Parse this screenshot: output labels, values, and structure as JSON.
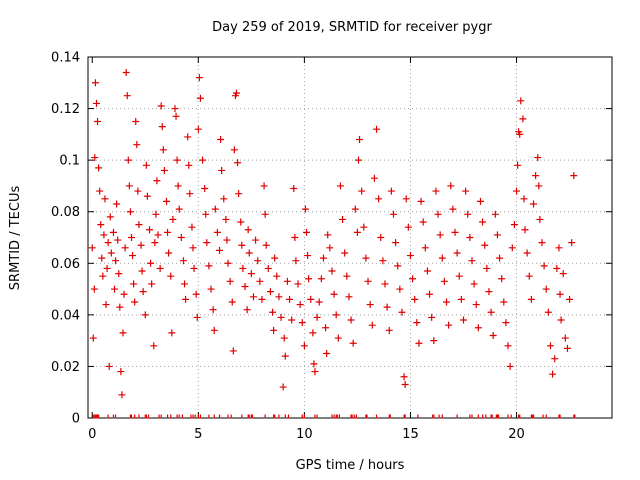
{
  "chart_data": {
    "type": "scatter",
    "title": "Day 259 of 2019, SRMTID for receiver pygr",
    "xlabel": "GPS time / hours",
    "ylabel": "SRMTID / TECUs",
    "xlim": [
      -0.2,
      24.5
    ],
    "ylim": [
      0,
      0.14
    ],
    "xticks": [
      0,
      5,
      10,
      15,
      20
    ],
    "xtick_labels": [
      "0",
      "5",
      "10",
      "15",
      "20"
    ],
    "yticks": [
      0,
      0.02,
      0.04,
      0.06,
      0.08,
      0.1,
      0.12,
      0.14
    ],
    "ytick_labels": [
      "0",
      "0.02",
      "0.04",
      "0.06",
      "0.08",
      "0.1",
      "0.12",
      "0.14"
    ],
    "grid": true,
    "marker": "+",
    "color": "#e00000",
    "series": [
      {
        "name": "SRMTID",
        "points": [
          [
            0.0,
            0.066
          ],
          [
            0.05,
            0.031
          ],
          [
            0.1,
            0.05
          ],
          [
            0.12,
            0.101
          ],
          [
            0.15,
            0.13
          ],
          [
            0.2,
            0.122
          ],
          [
            0.25,
            0.115
          ],
          [
            0.3,
            0.097
          ],
          [
            0.35,
            0.088
          ],
          [
            0.4,
            0.075
          ],
          [
            0.45,
            0.062
          ],
          [
            0.5,
            0.055
          ],
          [
            0.55,
            0.071
          ],
          [
            0.6,
            0.085
          ],
          [
            0.65,
            0.044
          ],
          [
            0.7,
            0.058
          ],
          [
            0.75,
            0.068
          ],
          [
            0.8,
            0.02
          ],
          [
            0.85,
            0.078
          ],
          [
            0.9,
            0.064
          ],
          [
            1.0,
            0.072
          ],
          [
            1.05,
            0.05
          ],
          [
            1.1,
            0.061
          ],
          [
            1.15,
            0.083
          ],
          [
            1.2,
            0.069
          ],
          [
            1.25,
            0.056
          ],
          [
            1.3,
            0.043
          ],
          [
            1.35,
            0.018
          ],
          [
            1.4,
            0.009
          ],
          [
            1.45,
            0.033
          ],
          [
            1.5,
            0.048
          ],
          [
            1.55,
            0.066
          ],
          [
            1.6,
            0.134
          ],
          [
            1.65,
            0.125
          ],
          [
            1.7,
            0.1
          ],
          [
            1.75,
            0.09
          ],
          [
            1.8,
            0.08
          ],
          [
            1.85,
            0.07
          ],
          [
            1.9,
            0.063
          ],
          [
            1.95,
            0.052
          ],
          [
            2.0,
            0.045
          ],
          [
            2.05,
            0.115
          ],
          [
            2.1,
            0.106
          ],
          [
            2.15,
            0.088
          ],
          [
            2.2,
            0.075
          ],
          [
            2.3,
            0.067
          ],
          [
            2.35,
            0.057
          ],
          [
            2.4,
            0.049
          ],
          [
            2.5,
            0.04
          ],
          [
            2.55,
            0.098
          ],
          [
            2.6,
            0.086
          ],
          [
            2.7,
            0.073
          ],
          [
            2.75,
            0.06
          ],
          [
            2.8,
            0.052
          ],
          [
            2.9,
            0.028
          ],
          [
            2.95,
            0.068
          ],
          [
            3.0,
            0.079
          ],
          [
            3.05,
            0.092
          ],
          [
            3.1,
            0.071
          ],
          [
            3.2,
            0.058
          ],
          [
            3.25,
            0.121
          ],
          [
            3.3,
            0.113
          ],
          [
            3.35,
            0.104
          ],
          [
            3.4,
            0.096
          ],
          [
            3.5,
            0.084
          ],
          [
            3.55,
            0.072
          ],
          [
            3.6,
            0.064
          ],
          [
            3.7,
            0.055
          ],
          [
            3.75,
            0.033
          ],
          [
            3.8,
            0.077
          ],
          [
            3.9,
            0.12
          ],
          [
            3.95,
            0.117
          ],
          [
            4.0,
            0.1
          ],
          [
            4.05,
            0.09
          ],
          [
            4.1,
            0.081
          ],
          [
            4.2,
            0.07
          ],
          [
            4.3,
            0.061
          ],
          [
            4.35,
            0.052
          ],
          [
            4.4,
            0.046
          ],
          [
            4.5,
            0.109
          ],
          [
            4.55,
            0.098
          ],
          [
            4.6,
            0.087
          ],
          [
            4.7,
            0.074
          ],
          [
            4.75,
            0.066
          ],
          [
            4.8,
            0.058
          ],
          [
            4.9,
            0.048
          ],
          [
            4.95,
            0.039
          ],
          [
            5.0,
            0.112
          ],
          [
            5.05,
            0.132
          ],
          [
            5.1,
            0.124
          ],
          [
            5.2,
            0.1
          ],
          [
            5.3,
            0.089
          ],
          [
            5.35,
            0.079
          ],
          [
            5.4,
            0.068
          ],
          [
            5.5,
            0.059
          ],
          [
            5.6,
            0.05
          ],
          [
            5.7,
            0.042
          ],
          [
            5.75,
            0.034
          ],
          [
            5.8,
            0.081
          ],
          [
            5.9,
            0.072
          ],
          [
            6.0,
            0.065
          ],
          [
            6.05,
            0.108
          ],
          [
            6.1,
            0.096
          ],
          [
            6.2,
            0.085
          ],
          [
            6.3,
            0.077
          ],
          [
            6.35,
            0.069
          ],
          [
            6.4,
            0.06
          ],
          [
            6.5,
            0.053
          ],
          [
            6.6,
            0.045
          ],
          [
            6.65,
            0.026
          ],
          [
            6.7,
            0.104
          ],
          [
            6.75,
            0.125
          ],
          [
            6.8,
            0.126
          ],
          [
            6.85,
            0.099
          ],
          [
            6.9,
            0.087
          ],
          [
            7.0,
            0.076
          ],
          [
            7.05,
            0.067
          ],
          [
            7.1,
            0.058
          ],
          [
            7.2,
            0.051
          ],
          [
            7.3,
            0.042
          ],
          [
            7.35,
            0.073
          ],
          [
            7.4,
            0.064
          ],
          [
            7.5,
            0.056
          ],
          [
            7.6,
            0.047
          ],
          [
            7.7,
            0.069
          ],
          [
            7.8,
            0.061
          ],
          [
            7.9,
            0.053
          ],
          [
            8.0,
            0.046
          ],
          [
            8.1,
            0.09
          ],
          [
            8.15,
            0.079
          ],
          [
            8.2,
            0.067
          ],
          [
            8.3,
            0.058
          ],
          [
            8.4,
            0.049
          ],
          [
            8.5,
            0.041
          ],
          [
            8.55,
            0.034
          ],
          [
            8.6,
            0.062
          ],
          [
            8.7,
            0.055
          ],
          [
            8.8,
            0.047
          ],
          [
            8.9,
            0.039
          ],
          [
            9.0,
            0.012
          ],
          [
            9.05,
            0.031
          ],
          [
            9.1,
            0.024
          ],
          [
            9.2,
            0.053
          ],
          [
            9.3,
            0.046
          ],
          [
            9.4,
            0.038
          ],
          [
            9.5,
            0.089
          ],
          [
            9.55,
            0.07
          ],
          [
            9.6,
            0.061
          ],
          [
            9.7,
            0.052
          ],
          [
            9.8,
            0.044
          ],
          [
            9.9,
            0.037
          ],
          [
            10.0,
            0.028
          ],
          [
            10.05,
            0.081
          ],
          [
            10.1,
            0.072
          ],
          [
            10.15,
            0.063
          ],
          [
            10.2,
            0.054
          ],
          [
            10.3,
            0.046
          ],
          [
            10.4,
            0.033
          ],
          [
            10.45,
            0.021
          ],
          [
            10.5,
            0.018
          ],
          [
            10.6,
            0.039
          ],
          [
            10.7,
            0.045
          ],
          [
            10.8,
            0.054
          ],
          [
            10.9,
            0.062
          ],
          [
            11.0,
            0.035
          ],
          [
            11.05,
            0.025
          ],
          [
            11.1,
            0.071
          ],
          [
            11.2,
            0.066
          ],
          [
            11.3,
            0.057
          ],
          [
            11.4,
            0.048
          ],
          [
            11.5,
            0.04
          ],
          [
            11.6,
            0.031
          ],
          [
            11.7,
            0.09
          ],
          [
            11.8,
            0.077
          ],
          [
            11.9,
            0.064
          ],
          [
            12.0,
            0.055
          ],
          [
            12.1,
            0.047
          ],
          [
            12.2,
            0.038
          ],
          [
            12.3,
            0.029
          ],
          [
            12.4,
            0.081
          ],
          [
            12.5,
            0.072
          ],
          [
            12.55,
            0.1
          ],
          [
            12.6,
            0.108
          ],
          [
            12.7,
            0.088
          ],
          [
            12.8,
            0.074
          ],
          [
            12.9,
            0.062
          ],
          [
            13.0,
            0.053
          ],
          [
            13.1,
            0.044
          ],
          [
            13.2,
            0.036
          ],
          [
            13.3,
            0.093
          ],
          [
            13.4,
            0.112
          ],
          [
            13.5,
            0.085
          ],
          [
            13.6,
            0.07
          ],
          [
            13.7,
            0.061
          ],
          [
            13.8,
            0.052
          ],
          [
            13.9,
            0.043
          ],
          [
            14.0,
            0.034
          ],
          [
            14.1,
            0.088
          ],
          [
            14.2,
            0.079
          ],
          [
            14.3,
            0.068
          ],
          [
            14.4,
            0.059
          ],
          [
            14.5,
            0.05
          ],
          [
            14.6,
            0.041
          ],
          [
            14.7,
            0.016
          ],
          [
            14.75,
            0.013
          ],
          [
            14.8,
            0.085
          ],
          [
            14.9,
            0.074
          ],
          [
            15.0,
            0.063
          ],
          [
            15.1,
            0.054
          ],
          [
            15.2,
            0.046
          ],
          [
            15.3,
            0.037
          ],
          [
            15.4,
            0.029
          ],
          [
            15.5,
            0.084
          ],
          [
            15.6,
            0.076
          ],
          [
            15.7,
            0.066
          ],
          [
            15.8,
            0.057
          ],
          [
            15.9,
            0.048
          ],
          [
            16.0,
            0.039
          ],
          [
            16.1,
            0.03
          ],
          [
            16.2,
            0.088
          ],
          [
            16.3,
            0.079
          ],
          [
            16.4,
            0.071
          ],
          [
            16.5,
            0.062
          ],
          [
            16.6,
            0.053
          ],
          [
            16.7,
            0.045
          ],
          [
            16.8,
            0.036
          ],
          [
            16.9,
            0.09
          ],
          [
            17.0,
            0.081
          ],
          [
            17.1,
            0.072
          ],
          [
            17.2,
            0.064
          ],
          [
            17.3,
            0.055
          ],
          [
            17.4,
            0.046
          ],
          [
            17.5,
            0.038
          ],
          [
            17.6,
            0.088
          ],
          [
            17.7,
            0.079
          ],
          [
            17.8,
            0.07
          ],
          [
            17.9,
            0.061
          ],
          [
            18.0,
            0.052
          ],
          [
            18.1,
            0.044
          ],
          [
            18.2,
            0.035
          ],
          [
            18.3,
            0.084
          ],
          [
            18.4,
            0.076
          ],
          [
            18.5,
            0.067
          ],
          [
            18.6,
            0.058
          ],
          [
            18.7,
            0.049
          ],
          [
            18.8,
            0.041
          ],
          [
            18.9,
            0.032
          ],
          [
            19.0,
            0.079
          ],
          [
            19.1,
            0.071
          ],
          [
            19.2,
            0.062
          ],
          [
            19.3,
            0.054
          ],
          [
            19.4,
            0.045
          ],
          [
            19.5,
            0.037
          ],
          [
            19.6,
            0.028
          ],
          [
            19.7,
            0.02
          ],
          [
            19.8,
            0.066
          ],
          [
            19.9,
            0.075
          ],
          [
            20.0,
            0.088
          ],
          [
            20.05,
            0.098
          ],
          [
            20.1,
            0.111
          ],
          [
            20.15,
            0.11
          ],
          [
            20.2,
            0.123
          ],
          [
            20.3,
            0.116
          ],
          [
            20.35,
            0.085
          ],
          [
            20.4,
            0.073
          ],
          [
            20.5,
            0.064
          ],
          [
            20.6,
            0.055
          ],
          [
            20.7,
            0.046
          ],
          [
            20.8,
            0.083
          ],
          [
            20.9,
            0.094
          ],
          [
            21.0,
            0.101
          ],
          [
            21.05,
            0.09
          ],
          [
            21.1,
            0.077
          ],
          [
            21.2,
            0.068
          ],
          [
            21.3,
            0.059
          ],
          [
            21.4,
            0.05
          ],
          [
            21.5,
            0.041
          ],
          [
            21.6,
            0.028
          ],
          [
            21.7,
            0.017
          ],
          [
            21.8,
            0.023
          ],
          [
            21.9,
            0.058
          ],
          [
            22.0,
            0.066
          ],
          [
            22.05,
            0.048
          ],
          [
            22.1,
            0.038
          ],
          [
            22.2,
            0.056
          ],
          [
            22.3,
            0.031
          ],
          [
            22.4,
            0.027
          ],
          [
            22.5,
            0.046
          ],
          [
            22.6,
            0.068
          ],
          [
            22.7,
            0.094
          ]
        ]
      }
    ],
    "rug_markers": [
      0.05,
      0.12,
      0.15,
      0.2,
      0.25,
      0.3,
      0.75,
      1.0,
      1.1,
      1.8,
      1.85,
      2.0,
      2.2,
      2.5,
      2.55,
      2.65,
      3.15,
      3.25,
      3.55,
      3.7,
      4.0,
      4.1,
      4.25,
      4.65,
      4.75,
      4.85,
      5.0,
      5.1,
      5.5,
      5.75,
      6.0,
      6.4,
      6.55,
      7.05,
      7.35,
      7.4,
      7.5,
      7.55,
      8.15,
      8.55,
      8.6,
      8.8,
      9.1,
      9.25,
      9.9,
      10.0,
      10.5,
      10.6,
      11.3,
      11.4,
      11.5,
      11.55,
      11.65,
      12.2,
      12.25,
      12.35,
      12.45,
      12.9,
      12.95,
      13.4,
      14.0,
      14.05,
      14.7,
      14.75,
      15.35,
      16.05,
      16.1,
      16.35,
      16.5,
      17.2,
      17.8,
      17.9,
      18.2,
      18.4,
      18.55,
      18.8,
      18.85,
      19.05,
      19.1,
      19.15,
      19.6,
      19.75,
      20.1,
      20.15,
      20.7,
      20.75,
      20.8,
      21.25,
      21.4,
      22.0,
      22.05,
      22.7,
      22.75
    ]
  }
}
